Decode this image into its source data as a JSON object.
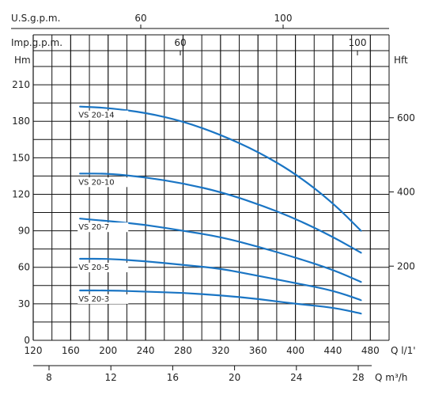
{
  "chart_data": {
    "type": "line",
    "top_axis_1": {
      "unit": "U.S.g.p.m.",
      "ticks": [
        {
          "label": "60",
          "value": 60
        },
        {
          "label": "100",
          "value": 100
        }
      ]
    },
    "top_axis_2": {
      "unit": "Imp.g.p.m.",
      "ticks": [
        {
          "label": "60",
          "value": 60
        },
        {
          "label": "100",
          "value": 100
        }
      ]
    },
    "left_axis": {
      "unit": "Hm",
      "range": [
        0,
        225
      ],
      "ticks": [
        "0",
        "30",
        "60",
        "90",
        "120",
        "150",
        "180",
        "210"
      ]
    },
    "right_axis": {
      "unit": "Hft",
      "ticks": [
        {
          "label": "200",
          "value": 200
        },
        {
          "label": "400",
          "value": 400
        },
        {
          "label": "600",
          "value": 600
        }
      ]
    },
    "x_axis": {
      "unit": "Q l/1'",
      "range": [
        120,
        500
      ],
      "ticks": [
        "120",
        "160",
        "200",
        "240",
        "280",
        "320",
        "360",
        "400",
        "440",
        "480"
      ]
    },
    "bottom_axis_2": {
      "unit": "Q m³/h",
      "ticks": [
        {
          "label": "8",
          "value": 8
        },
        {
          "label": "12",
          "value": 12
        },
        {
          "label": "16",
          "value": 16
        },
        {
          "label": "20",
          "value": 20
        },
        {
          "label": "24",
          "value": 24
        },
        {
          "label": "28",
          "value": 28
        }
      ]
    },
    "series": [
      {
        "name": "VS 20-14",
        "points": [
          [
            170,
            192
          ],
          [
            200,
            191
          ],
          [
            240,
            187
          ],
          [
            280,
            180
          ],
          [
            320,
            169
          ],
          [
            360,
            155
          ],
          [
            400,
            137
          ],
          [
            440,
            113
          ],
          [
            470,
            90
          ]
        ]
      },
      {
        "name": "VS 20-10",
        "points": [
          [
            170,
            137
          ],
          [
            200,
            137
          ],
          [
            240,
            134
          ],
          [
            280,
            129
          ],
          [
            320,
            122
          ],
          [
            360,
            112
          ],
          [
            400,
            100
          ],
          [
            440,
            85
          ],
          [
            470,
            72
          ]
        ]
      },
      {
        "name": "VS 20-7",
        "points": [
          [
            170,
            100
          ],
          [
            200,
            98
          ],
          [
            240,
            95
          ],
          [
            280,
            90
          ],
          [
            320,
            85
          ],
          [
            360,
            77
          ],
          [
            400,
            68
          ],
          [
            440,
            58
          ],
          [
            470,
            48
          ]
        ]
      },
      {
        "name": "VS 20-5",
        "points": [
          [
            170,
            67
          ],
          [
            200,
            67
          ],
          [
            240,
            65
          ],
          [
            280,
            62
          ],
          [
            320,
            59
          ],
          [
            360,
            53
          ],
          [
            400,
            47
          ],
          [
            440,
            41
          ],
          [
            470,
            33
          ]
        ]
      },
      {
        "name": "VS 20-3",
        "points": [
          [
            170,
            41
          ],
          [
            200,
            41
          ],
          [
            240,
            40
          ],
          [
            280,
            39
          ],
          [
            320,
            37
          ],
          [
            360,
            34
          ],
          [
            400,
            30
          ],
          [
            440,
            27
          ],
          [
            470,
            22
          ]
        ]
      }
    ],
    "grid": true,
    "line_color": "#1a75c4"
  }
}
